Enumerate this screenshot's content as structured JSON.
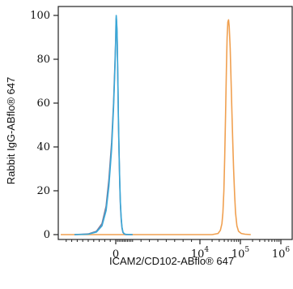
{
  "chart_data": {
    "type": "line",
    "xlabel": "ICAM2/CD102-ABflo® 647",
    "ylabel": "Rabbit IgG-ABflo® 647",
    "x_scale": "biexponential",
    "x_ticks": [
      {
        "value": 0,
        "base": "0",
        "exp": ""
      },
      {
        "value": 10000,
        "base": "10",
        "exp": "4"
      },
      {
        "value": 100000,
        "base": "10",
        "exp": "5"
      },
      {
        "value": 1000000,
        "base": "10",
        "exp": "6"
      }
    ],
    "ylim": [
      0,
      100
    ],
    "y_ticks": [
      0,
      20,
      40,
      60,
      80,
      100
    ],
    "grid": false,
    "series": [
      {
        "color": "#f0a050",
        "points": [
          [
            -2000,
            0
          ],
          [
            0,
            0
          ],
          [
            5000,
            0
          ],
          [
            12000,
            0
          ],
          [
            20000,
            0
          ],
          [
            28000,
            0.5
          ],
          [
            32000,
            2
          ],
          [
            35000,
            5
          ],
          [
            37000,
            10
          ],
          [
            39000,
            20
          ],
          [
            41000,
            35
          ],
          [
            43000,
            55
          ],
          [
            45000,
            75
          ],
          [
            47000,
            90
          ],
          [
            49000,
            97
          ],
          [
            51000,
            98
          ],
          [
            53000,
            95
          ],
          [
            56000,
            85
          ],
          [
            59000,
            70
          ],
          [
            62000,
            55
          ],
          [
            65000,
            42
          ],
          [
            68000,
            30
          ],
          [
            72000,
            18
          ],
          [
            76000,
            10
          ],
          [
            82000,
            4
          ],
          [
            90000,
            1.5
          ],
          [
            105000,
            0.5
          ],
          [
            130000,
            0.2
          ],
          [
            180000,
            0
          ]
        ]
      },
      {
        "color": "#7a7a9a",
        "points": [
          [
            -1500,
            0
          ],
          [
            -1000,
            0.3
          ],
          [
            -700,
            1.5
          ],
          [
            -500,
            5
          ],
          [
            -350,
            13
          ],
          [
            -250,
            25
          ],
          [
            -150,
            42
          ],
          [
            -80,
            60
          ],
          [
            -30,
            78
          ],
          [
            0,
            90
          ],
          [
            30,
            97
          ],
          [
            60,
            99
          ],
          [
            100,
            97
          ],
          [
            150,
            92
          ],
          [
            200,
            82
          ],
          [
            260,
            68
          ],
          [
            320,
            52
          ],
          [
            390,
            37
          ],
          [
            470,
            24
          ],
          [
            550,
            14
          ],
          [
            640,
            7
          ],
          [
            740,
            3
          ],
          [
            860,
            1
          ],
          [
            1000,
            0.3
          ],
          [
            1200,
            0
          ],
          [
            2000,
            0
          ]
        ]
      },
      {
        "color": "#3aa8d8",
        "points": [
          [
            -1500,
            0
          ],
          [
            -1000,
            0.2
          ],
          [
            -700,
            1.2
          ],
          [
            -500,
            4
          ],
          [
            -350,
            11
          ],
          [
            -250,
            22
          ],
          [
            -150,
            39
          ],
          [
            -80,
            58
          ],
          [
            -30,
            76
          ],
          [
            0,
            89
          ],
          [
            30,
            96
          ],
          [
            60,
            100
          ],
          [
            100,
            98
          ],
          [
            150,
            93
          ],
          [
            200,
            83
          ],
          [
            260,
            69
          ],
          [
            320,
            53
          ],
          [
            390,
            38
          ],
          [
            470,
            25
          ],
          [
            550,
            15
          ],
          [
            640,
            8
          ],
          [
            740,
            3.5
          ],
          [
            860,
            1.2
          ],
          [
            1000,
            0.4
          ],
          [
            1200,
            0.1
          ],
          [
            2000,
            0
          ]
        ]
      }
    ]
  }
}
